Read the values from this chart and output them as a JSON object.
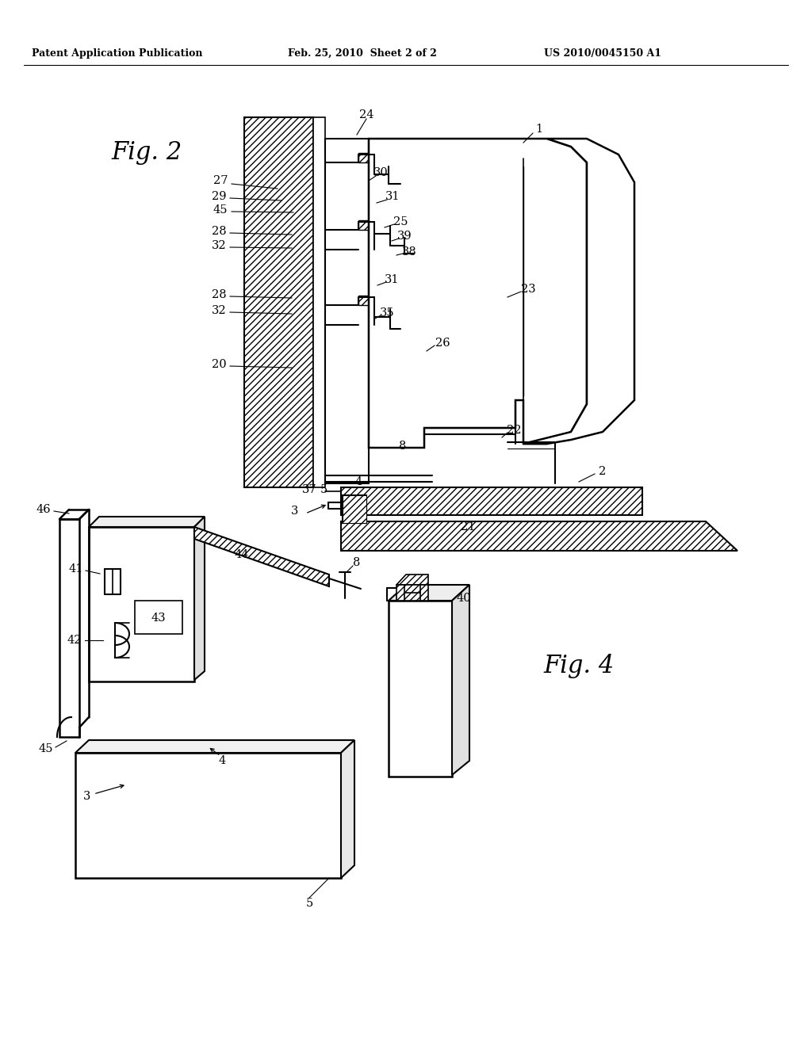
{
  "bg": "#ffffff",
  "lc": "#000000",
  "header_left": "Patent Application Publication",
  "header_mid": "Feb. 25, 2010  Sheet 2 of 2",
  "header_right": "US 2010/0045150 A1",
  "fig2": "Fig. 2",
  "fig4": "Fig. 4"
}
